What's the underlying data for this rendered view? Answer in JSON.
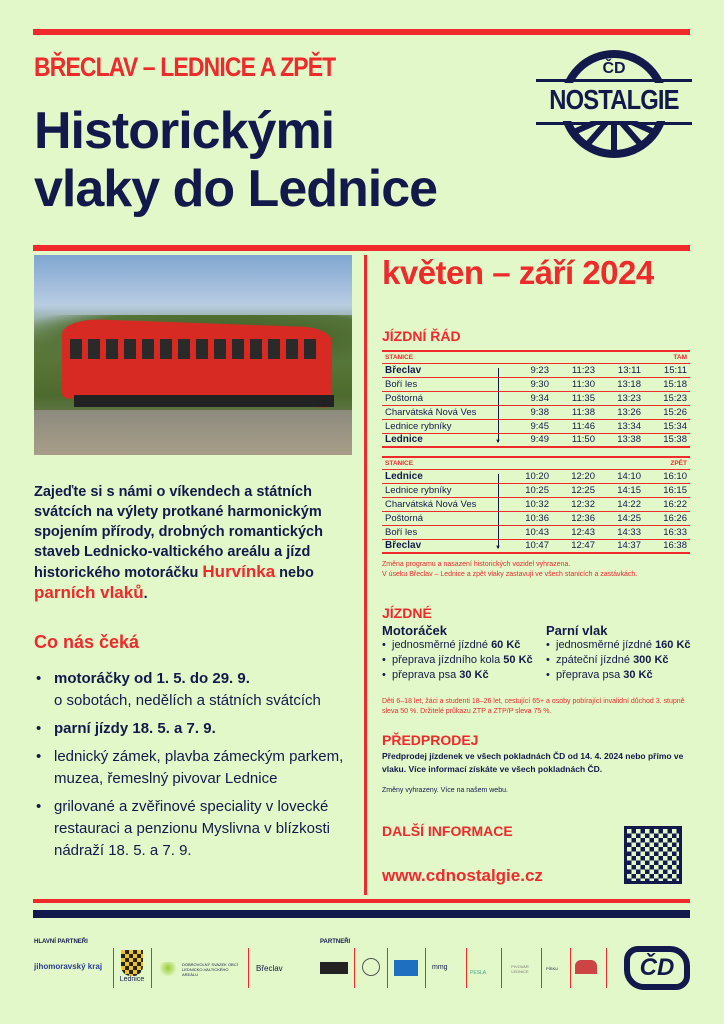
{
  "header": {
    "route": "BŘECLAV – LEDNICE A ZPĚT",
    "title_line1": "Historickými",
    "title_line2": "vlaky do Lednice",
    "logo": {
      "top": "ČD",
      "main": "NOSTALGIE"
    }
  },
  "season": "květen – září 2024",
  "intro": {
    "text_before": "Zajeďte si s námi o víkendech a státních svátcích na výlety protkané harmonickým spojením přírody, drobných romantických staveb Lednicko-valtického areálu a jízd historického motoráčku ",
    "highlight1": "Hurvínka",
    "text_mid": " nebo ",
    "highlight2": "parních vlaků",
    "text_end": "."
  },
  "what_awaits": {
    "heading": "Co nás čeká",
    "items": [
      {
        "bold": "motoráčky od 1. 5. do 29. 9.",
        "text": "o sobotách, nedělích a státních svátcích"
      },
      {
        "bold": "parní jízdy 18. 5. a 7. 9.",
        "text": ""
      },
      {
        "bold": "",
        "text": "lednický zámek, plavba zámeckým parkem, muzea, řemeslný pivovar Lednice"
      },
      {
        "bold": "",
        "text": "grilované a zvěřinové speciality v lovecké restauraci a penzionu Myslivna v blízkosti nádraží 18. 5. a 7. 9."
      }
    ]
  },
  "timetable": {
    "heading": "JÍZDNÍ ŘÁD",
    "outbound": {
      "col_station": "STANICE",
      "direction": "TAM",
      "rows": [
        {
          "station": "Břeclav",
          "bold": true,
          "times": [
            "9:23",
            "11:23",
            "13:11",
            "15:11"
          ]
        },
        {
          "station": "Boří les",
          "bold": false,
          "times": [
            "9:30",
            "11:30",
            "13:18",
            "15:18"
          ]
        },
        {
          "station": "Poštorná",
          "bold": false,
          "times": [
            "9:34",
            "11:35",
            "13:23",
            "15:23"
          ]
        },
        {
          "station": "Charvátská Nová Ves",
          "bold": false,
          "times": [
            "9:38",
            "11:38",
            "13:26",
            "15:26"
          ]
        },
        {
          "station": "Lednice rybníky",
          "bold": false,
          "times": [
            "9:45",
            "11:46",
            "13:34",
            "15:34"
          ]
        },
        {
          "station": "Lednice",
          "bold": true,
          "times": [
            "9:49",
            "11:50",
            "13:38",
            "15:38"
          ]
        }
      ]
    },
    "return": {
      "col_station": "STANICE",
      "direction": "ZPĚT",
      "rows": [
        {
          "station": "Lednice",
          "bold": true,
          "times": [
            "10:20",
            "12:20",
            "14:10",
            "16:10"
          ]
        },
        {
          "station": "Lednice rybníky",
          "bold": false,
          "times": [
            "10:25",
            "12:25",
            "14:15",
            "16:15"
          ]
        },
        {
          "station": "Charvátská Nová Ves",
          "bold": false,
          "times": [
            "10:32",
            "12:32",
            "14:22",
            "16:22"
          ]
        },
        {
          "station": "Poštorná",
          "bold": false,
          "times": [
            "10:36",
            "12:36",
            "14:25",
            "16:26"
          ]
        },
        {
          "station": "Boří les",
          "bold": false,
          "times": [
            "10:43",
            "12:43",
            "14:33",
            "16:33"
          ]
        },
        {
          "station": "Břeclav",
          "bold": true,
          "times": [
            "10:47",
            "12:47",
            "14:37",
            "16:38"
          ]
        }
      ]
    },
    "note1": "Změna programu a nasazení historických vozidel vyhrazena.",
    "note2": "V úseku Břeclav – Lednice a zpět vlaky zastavují ve všech stanicích a zastávkách."
  },
  "fares": {
    "heading": "JÍZDNÉ",
    "motor": {
      "title": "Motoráček",
      "items": [
        {
          "text": "jednosměrné jízdné ",
          "price": "60 Kč"
        },
        {
          "text": "přeprava jízdního kola ",
          "price": "50 Kč"
        },
        {
          "text": "přeprava psa ",
          "price": "30 Kč"
        }
      ]
    },
    "steam": {
      "title": "Parní vlak",
      "items": [
        {
          "text": "jednosměrné jízdné ",
          "price": "160 Kč"
        },
        {
          "text": "zpáteční jízdné ",
          "price": "300 Kč"
        },
        {
          "text": "přeprava psa ",
          "price": "30 Kč"
        }
      ]
    },
    "discount": "Děti 6–18 let, žáci a studenti 18–26 let, cestující 65+ a osoby pobírající invalidní důchod 3. stupně sleva 50 %. Držitelé průkazu ZTP a ZTP/P sleva 75 %."
  },
  "presale": {
    "heading": "PŘEDPRODEJ",
    "text": "Předprodej jízdenek ve všech pokladnách ČD od 14. 4. 2024 nebo přímo ve vlaku. Více informací získáte ve všech pokladnách ČD.",
    "note": "Změny vyhrazeny. Více na našem webu."
  },
  "more_info": {
    "heading": "DALŠÍ INFORMACE",
    "url": "www.cdnostalgie.cz"
  },
  "footer": {
    "main_partners_label": "HLAVNÍ PARTNEŘI",
    "partners_label": "PARTNEŘI",
    "main_partners": [
      "jihomoravský kraj",
      "Lednice",
      "DOBROVOLNÝ SVAZEK OBCÍ LEDNICKO-VALTICKÉHO AREÁLU",
      "Břeclav"
    ],
    "partners": [
      "PESLA",
      "PIVOVAR LEDNICE",
      "PÍSKU"
    ],
    "cd_logo": "ČD"
  },
  "colors": {
    "background": "#e3f8c9",
    "red": "#ee2a2a",
    "navy": "#121a4b"
  }
}
